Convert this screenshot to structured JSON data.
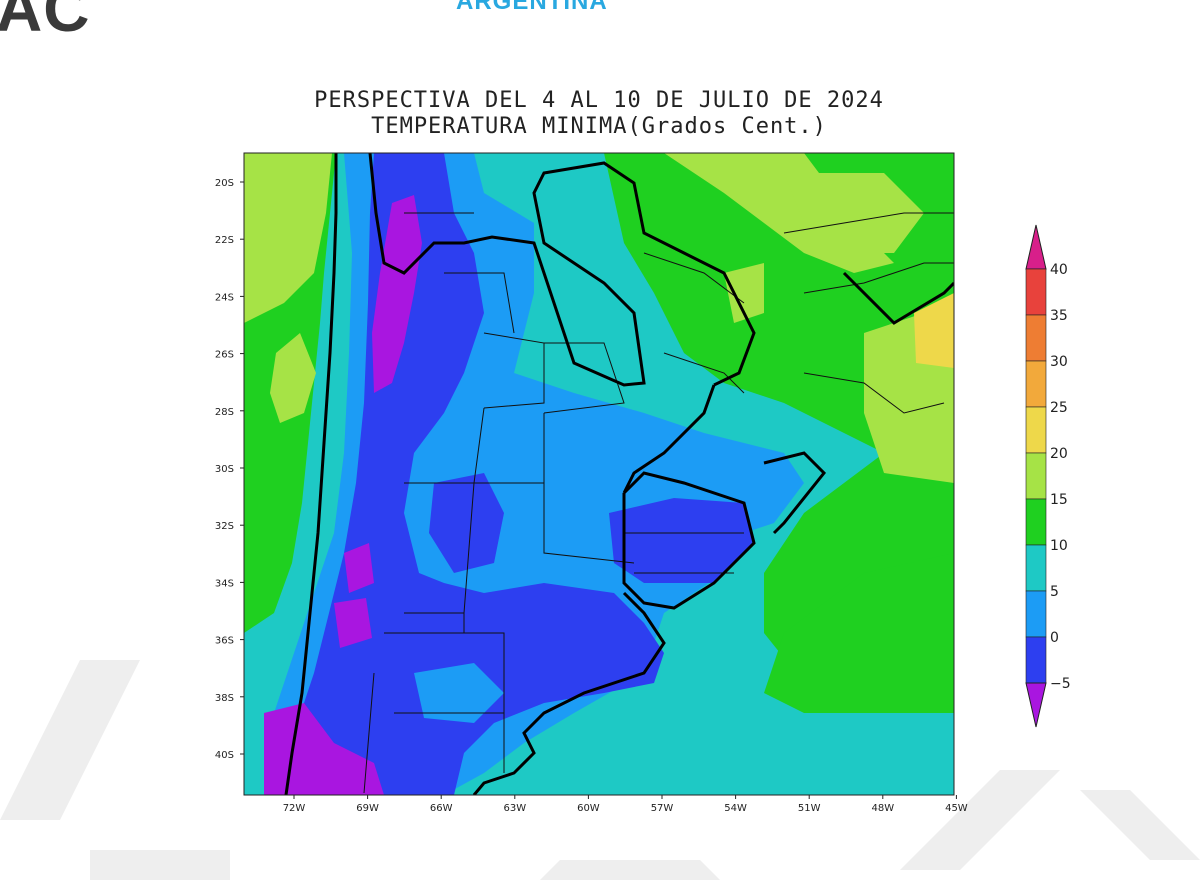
{
  "header": {
    "brand": "AC",
    "region": "ARGENTINA"
  },
  "map": {
    "title_line1": "PERSPECTIVA DEL 4 AL 10 DE JULIO DE 2024",
    "title_line2": "TEMPERATURA MINIMA(Grados Cent.)",
    "lat_labels": [
      "20S",
      "22S",
      "24S",
      "26S",
      "28S",
      "30S",
      "32S",
      "34S",
      "36S",
      "38S",
      "40S"
    ],
    "lon_labels": [
      "72W",
      "69W",
      "66W",
      "63W",
      "60W",
      "57W",
      "54W",
      "51W",
      "48W",
      "45W"
    ]
  },
  "legend": {
    "labels": [
      "40",
      "35",
      "30",
      "25",
      "20",
      "15",
      "10",
      "5",
      "0",
      "−5"
    ],
    "colors": {
      "above_40": "#d81f8a",
      "35_40": "#e8423c",
      "30_35": "#ee7d33",
      "25_30": "#f2a93b",
      "20_25": "#eed84a",
      "15_20": "#a6e346",
      "10_15": "#1fd020",
      "5_10": "#1ec9c5",
      "0_5": "#1c9cf5",
      "minus5_0": "#2d3ff0",
      "below_minus5": "#a916e0"
    }
  }
}
